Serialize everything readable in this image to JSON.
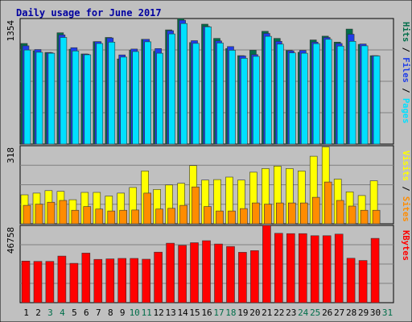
{
  "chart_data": {
    "type": "bar",
    "title": "Daily usage for June 2017",
    "categories": [
      "1",
      "2",
      "3",
      "4",
      "5",
      "6",
      "7",
      "8",
      "9",
      "10",
      "11",
      "12",
      "13",
      "14",
      "15",
      "16",
      "17",
      "18",
      "19",
      "20",
      "21",
      "22",
      "23",
      "24",
      "25",
      "26",
      "27",
      "28",
      "29",
      "30",
      "31"
    ],
    "weekend_days": [
      "3",
      "4",
      "10",
      "11",
      "17",
      "18",
      "24",
      "25",
      "31"
    ],
    "panels": [
      {
        "id": "hits-files-pages",
        "ymax_label": "1354",
        "ylim": [
          0,
          1354
        ],
        "legend": [
          "Pages",
          "Files",
          "Hits"
        ],
        "series": [
          {
            "name": "Hits",
            "color": "#006e4a",
            "values": [
              1085,
              1005,
              989,
              1200,
              1023,
              972,
              1105,
              1150,
              918,
              1012,
              1130,
              1002,
              1232,
              1354,
              1095,
              1293,
              1140,
              1030,
              954,
              1012,
              1216,
              1140,
              1010,
              990,
              1123,
              1164,
              1100,
              1240,
              1075,
              953,
              null
            ]
          },
          {
            "name": "Files",
            "color": "#1f3de8",
            "values": [
              1060,
              1020,
              985,
              1178,
              1040,
              970,
              1105,
              1145,
              962,
              1025,
              1130,
              1030,
              1223,
              1336,
              1115,
              1270,
              1113,
              1052,
              950,
              965,
              1193,
              1108,
              1005,
              1010,
              1100,
              1150,
              1085,
              1185,
              1080,
              954,
              null
            ]
          },
          {
            "name": "Pages",
            "color": "#00e0ff",
            "values": [
              1015,
              990,
              980,
              1150,
              1004,
              963,
              1085,
              1100,
              938,
              998,
              1103,
              980,
              1188,
              1300,
              1086,
              1265,
              1090,
              1012,
              925,
              946,
              1162,
              1078,
              983,
              980,
              1083,
              1130,
              1057,
              1108,
              1060,
              950,
              null
            ]
          }
        ]
      },
      {
        "id": "visits-sites",
        "ymax_label": "318",
        "ylim": [
          0,
          318
        ],
        "legend": [
          "Sites",
          "Visits"
        ],
        "series": [
          {
            "name": "Visits",
            "color": "#ffff00",
            "values": [
              118,
              125,
              135,
              132,
              98,
              128,
              128,
              113,
              125,
              148,
              215,
              140,
              158,
              165,
              237,
              178,
              180,
              190,
              178,
              210,
              225,
              235,
              225,
              215,
              275,
              313,
              182,
              130,
              115,
              175,
              null
            ]
          },
          {
            "name": "Sites",
            "color": "#ff8c00",
            "values": [
              75,
              80,
              88,
              95,
              55,
              70,
              60,
              52,
              55,
              56,
              125,
              60,
              63,
              75,
              150,
              70,
              52,
              52,
              62,
              85,
              80,
              85,
              85,
              85,
              108,
              170,
              95,
              72,
              55,
              55,
              null
            ]
          }
        ]
      },
      {
        "id": "kbytes",
        "ymax_label": "46758",
        "ylim": [
          0,
          46758
        ],
        "legend": [
          "KBytes"
        ],
        "series": [
          {
            "name": "KBytes",
            "color": "#ff0000",
            "values": [
              25200,
              25000,
              25000,
              28200,
              23800,
              30000,
              26200,
              26500,
              26800,
              26800,
              26300,
              30600,
              36000,
              34700,
              36300,
              37500,
              35500,
              34000,
              30500,
              31500,
              46758,
              42000,
              41800,
              41800,
              40500,
              40500,
              41500,
              26900,
              25500,
              38900,
              null
            ]
          }
        ]
      }
    ],
    "colors": {
      "background": "#c0c0c0",
      "title": "#0000a0",
      "gridline": "#808080",
      "weekend_label": "#006e4a",
      "weekday_label": "#000000"
    }
  }
}
